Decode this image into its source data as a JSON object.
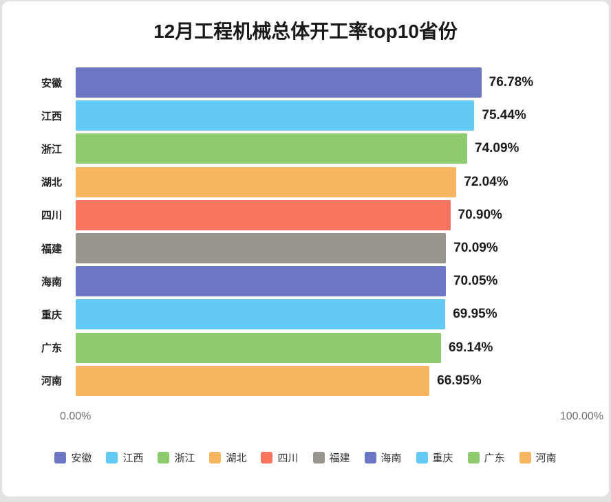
{
  "title": "12月工程机械总体开工率top10省份",
  "colors": {
    "purple": "#6C76C4",
    "light_blue": "#63C9F6",
    "green": "#8DCB6E",
    "orange": "#F6B55E",
    "red": "#F97560",
    "gray": "#97958D"
  },
  "chart_data": {
    "type": "bar",
    "orientation": "horizontal",
    "title": "12月工程机械总体开工率top10省份",
    "categories": [
      "安徽",
      "江西",
      "浙江",
      "湖北",
      "四川",
      "福建",
      "海南",
      "重庆",
      "广东",
      "河南"
    ],
    "values": [
      76.78,
      75.44,
      74.09,
      72.04,
      70.9,
      70.09,
      70.05,
      69.95,
      69.14,
      66.95
    ],
    "value_labels": [
      "76.78%",
      "75.44%",
      "74.09%",
      "72.04%",
      "70.90%",
      "70.09%",
      "70.05%",
      "69.95%",
      "69.14%",
      "66.95%"
    ],
    "bar_colors": [
      "#6C76C4",
      "#63C9F6",
      "#8DCB6E",
      "#F6B55E",
      "#F97560",
      "#97958D",
      "#6C76C4",
      "#63C9F6",
      "#8DCB6E",
      "#F6B55E"
    ],
    "xlabel": "",
    "ylabel": "",
    "xlim": [
      0,
      100
    ],
    "x_ticks": [
      "0.00%",
      "100.00%"
    ],
    "grid": false,
    "legend_position": "bottom",
    "legend": [
      {
        "label": "安徽",
        "color": "#6C76C4"
      },
      {
        "label": "江西",
        "color": "#63C9F6"
      },
      {
        "label": "浙江",
        "color": "#8DCB6E"
      },
      {
        "label": "湖北",
        "color": "#F6B55E"
      },
      {
        "label": "四川",
        "color": "#F97560"
      },
      {
        "label": "福建",
        "color": "#97958D"
      },
      {
        "label": "海南",
        "color": "#6C76C4"
      },
      {
        "label": "重庆",
        "color": "#63C9F6"
      },
      {
        "label": "广东",
        "color": "#8DCB6E"
      },
      {
        "label": "河南",
        "color": "#F6B55E"
      }
    ]
  }
}
